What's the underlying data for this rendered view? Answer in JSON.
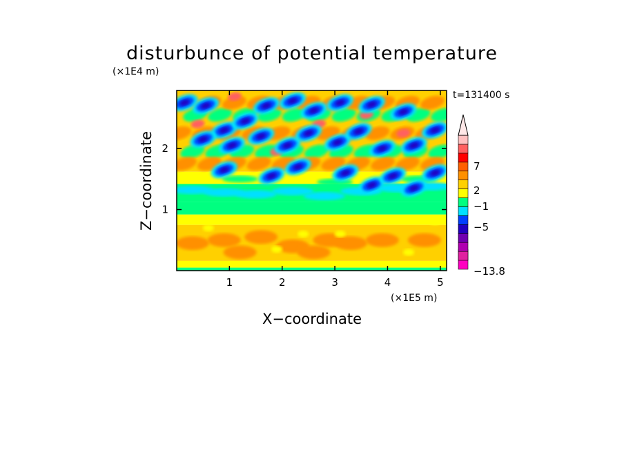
{
  "chart_data": {
    "type": "heatmap",
    "title": "disturbunce of potential temperature",
    "xlabel": "X−coordinate",
    "ylabel": "Z−coordinate",
    "x_unit": "(×1E5 m)",
    "y_unit": "(×1E4 m)",
    "time_label": "t=131400 s",
    "xlim": [
      0,
      5.12
    ],
    "ylim": [
      0,
      2.95
    ],
    "x_ticks": [
      "1",
      "2",
      "3",
      "4",
      "5"
    ],
    "y_ticks": [
      "1",
      "2"
    ],
    "colorbar": {
      "labels": [
        "7",
        "2",
        "−1",
        "−5",
        "−13.8"
      ],
      "colors": [
        "#ff00c0",
        "#e020a0",
        "#b000b0",
        "#7000b0",
        "#2000c0",
        "#0040ff",
        "#00e0ff",
        "#00ff80",
        "#ffff00",
        "#ffd000",
        "#ff9000",
        "#ff6000",
        "#ff0000",
        "#ff6060",
        "#ffc0c0"
      ]
    },
    "field_description_levels": {
      "upper_waves": [
        "dark-blue",
        "cyan",
        "green",
        "yellow",
        "orange"
      ],
      "mid_layer": [
        "cyan",
        "green"
      ],
      "lower_layer": [
        "green",
        "yellow",
        "orange"
      ]
    }
  }
}
